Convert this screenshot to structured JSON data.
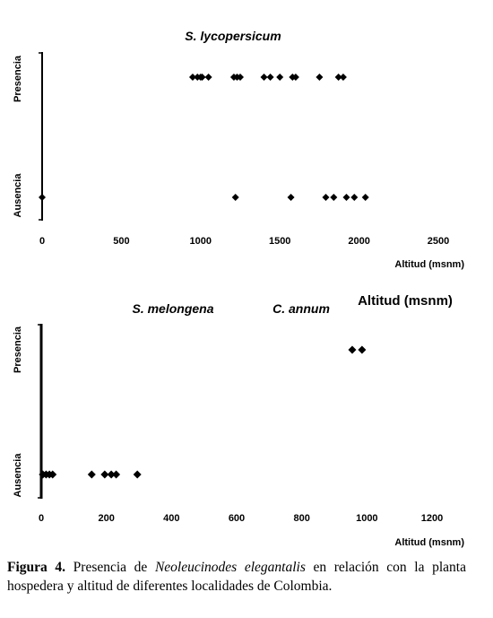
{
  "chart_data": [
    {
      "type": "scatter",
      "title": "S. lycopersicum",
      "xlabel": "Altitud (msnm)",
      "y_categories": [
        "Ausencia",
        "Presencia"
      ],
      "xlim": [
        0,
        2500
      ],
      "xticks": [
        0,
        500,
        1000,
        1500,
        2000,
        2500
      ],
      "grid": false,
      "legend": "none",
      "series": [
        {
          "values_category": "Presencia",
          "x": [
            950,
            980,
            1000,
            1010,
            1050,
            1210,
            1230,
            1250,
            1400,
            1440,
            1500,
            1580,
            1600,
            1750,
            1870,
            1900
          ]
        },
        {
          "values_category": "Ausencia",
          "x": [
            0,
            1220,
            1570,
            1790,
            1840,
            1920,
            1970,
            2040
          ]
        }
      ]
    },
    {
      "type": "scatter",
      "title": "S. melongena",
      "title2": "C. annum",
      "xlabel": "Altitud (msnm)",
      "overlay_label": "Altitud (msnm)",
      "y_categories": [
        "Ausencia",
        "Presencia"
      ],
      "xlim": [
        0,
        1200
      ],
      "xticks": [
        0,
        200,
        400,
        600,
        800,
        1000,
        1200
      ],
      "grid": false,
      "legend": "none",
      "series": [
        {
          "values_category": "Presencia",
          "x": [
            955,
            985
          ]
        },
        {
          "values_category": "Ausencia",
          "x": [
            5,
            15,
            25,
            35,
            155,
            195,
            215,
            230,
            295
          ]
        }
      ]
    }
  ],
  "caption": {
    "label": "Figura 4.",
    "text_before": " Presencia de ",
    "species": "Neoleucinodes elegantalis",
    "text_after": " en relación con la planta hospedera y altitud de diferentes localidades de Colombia."
  },
  "colors": {
    "marker": "#000000",
    "axis": "#000000"
  }
}
